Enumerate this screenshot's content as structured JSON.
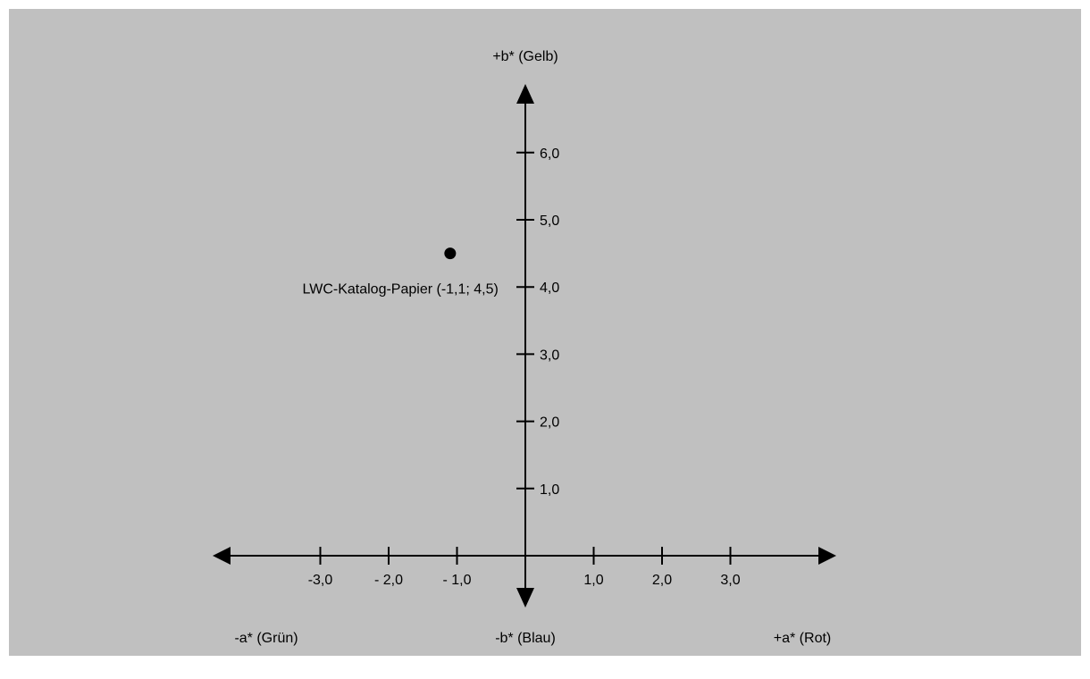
{
  "chart_data": {
    "type": "scatter",
    "title": "",
    "x_axis": {
      "positive_label": "+a* (Rot)",
      "negative_label": "-a* (Grün)",
      "range": [
        -4.5,
        4.5
      ],
      "ticks": [
        {
          "value": -3.0,
          "label": "-3,0"
        },
        {
          "value": -2.0,
          "label": "- 2,0"
        },
        {
          "value": -1.0,
          "label": "- 1,0"
        },
        {
          "value": 1.0,
          "label": "1,0"
        },
        {
          "value": 2.0,
          "label": "2,0"
        },
        {
          "value": 3.0,
          "label": "3,0"
        }
      ]
    },
    "y_axis": {
      "positive_label": "+b* (Gelb)",
      "negative_label": "-b* (Blau)",
      "range": [
        -0.5,
        7.0
      ],
      "ticks": [
        {
          "value": 1.0,
          "label": "1,0"
        },
        {
          "value": 2.0,
          "label": "2,0"
        },
        {
          "value": 3.0,
          "label": "3,0"
        },
        {
          "value": 4.0,
          "label": "4,0"
        },
        {
          "value": 5.0,
          "label": "5,0"
        },
        {
          "value": 6.0,
          "label": "6,0"
        }
      ]
    },
    "grid": false,
    "points": [
      {
        "x": -1.1,
        "y": 4.5,
        "label": "LWC-Katalog-Papier (-1,1; 4,5)"
      }
    ],
    "colors": {
      "background": "#c0c0c0",
      "ink": "#000000"
    }
  }
}
